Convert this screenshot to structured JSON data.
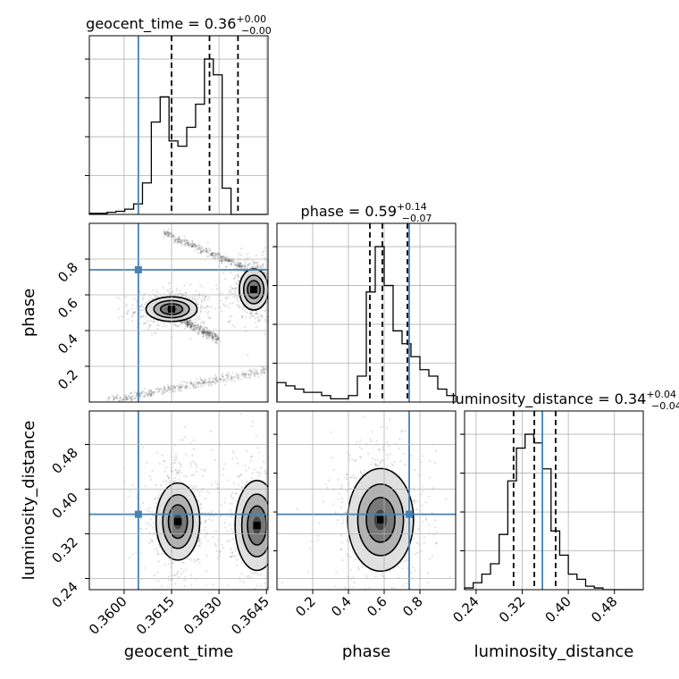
{
  "figure": {
    "colors": {
      "truth": "#4682b4",
      "hist": "#000000",
      "grid": "#b0b0b0",
      "density": [
        "#dcdcdc",
        "#a9a9a9",
        "#6e6e6e",
        "#3c3c3c"
      ]
    }
  },
  "chart_data": [
    {
      "type": "histogram",
      "parameter": "geocent_time",
      "title_name": "geocent_time = 0.36",
      "title_plus": "+0.00",
      "title_minus": "−0.00",
      "xlim": [
        0.3589,
        0.36455
      ],
      "bin_edges": [
        0.3589,
        0.35918,
        0.35946,
        0.35974,
        0.36002,
        0.3603,
        0.36058,
        0.36086,
        0.36114,
        0.36142,
        0.3617,
        0.36198,
        0.36226,
        0.36254,
        0.36282,
        0.3631,
        0.36338,
        0.36366,
        0.36394,
        0.36422,
        0.3645
      ],
      "counts": [
        1,
        1,
        2,
        3,
        5,
        10,
        30,
        88,
        112,
        70,
        65,
        83,
        105,
        148,
        133,
        25,
        0,
        0,
        0,
        0
      ],
      "quantiles": [
        0.3615,
        0.3627,
        0.3636
      ],
      "truth": 0.36045,
      "grid": true
    },
    {
      "type": "histogram",
      "parameter": "phase",
      "title_name": "phase = 0.59",
      "title_plus": "+0.14",
      "title_minus": "−0.07",
      "xlim": [
        0.0,
        1.0
      ],
      "bin_edges": [
        0.0,
        0.05,
        0.1,
        0.15,
        0.2,
        0.25,
        0.3,
        0.35,
        0.4,
        0.45,
        0.5,
        0.55,
        0.6,
        0.65,
        0.7,
        0.75,
        0.8,
        0.85,
        0.9,
        0.95,
        1.0
      ],
      "counts": [
        6,
        5,
        4,
        3,
        3,
        2,
        1,
        1,
        2,
        8,
        34,
        48,
        36,
        22,
        18,
        14,
        10,
        8,
        4,
        2
      ],
      "quantiles": [
        0.52,
        0.59,
        0.73
      ],
      "truth": 0.74,
      "grid": true
    },
    {
      "type": "histogram",
      "parameter": "luminosity_distance",
      "title_name": "luminosity_distance = 0.34",
      "title_plus": "+0.04",
      "title_minus": "−0.04",
      "xlim": [
        0.22,
        0.53
      ],
      "bin_edges": [
        0.22,
        0.235,
        0.25,
        0.265,
        0.28,
        0.295,
        0.31,
        0.325,
        0.34,
        0.355,
        0.37,
        0.385,
        0.4,
        0.415,
        0.43,
        0.445,
        0.46,
        0.475,
        0.49,
        0.505,
        0.52,
        0.535
      ],
      "counts": [
        1,
        4,
        9,
        15,
        32,
        63,
        82,
        90,
        85,
        70,
        34,
        20,
        9,
        6,
        2,
        1,
        0,
        0,
        0,
        0,
        0
      ],
      "quantiles": [
        0.305,
        0.341,
        0.378
      ],
      "truth": 0.355,
      "grid": true
    },
    {
      "type": "scatter",
      "x_param": "geocent_time",
      "y_param": "phase",
      "xlim": [
        0.3589,
        0.36455
      ],
      "ylim": [
        0.0,
        1.0
      ],
      "truth": [
        0.36045,
        0.74
      ],
      "density_peaks": [
        {
          "x": 0.3615,
          "y": 0.52,
          "sx": 0.00035,
          "sy": 0.03
        },
        {
          "x": 0.3641,
          "y": 0.63,
          "sx": 0.0002,
          "sy": 0.05
        }
      ],
      "filaments": [
        {
          "from": [
            0.3612,
            0.95
          ],
          "to": [
            0.3645,
            0.7
          ]
        },
        {
          "from": [
            0.3594,
            0.0
          ],
          "to": [
            0.3645,
            0.18
          ]
        },
        {
          "from": [
            0.3612,
            0.52
          ],
          "to": [
            0.363,
            0.35
          ]
        }
      ]
    },
    {
      "type": "scatter",
      "x_param": "geocent_time",
      "y_param": "luminosity_distance",
      "xlim": [
        0.3589,
        0.36455
      ],
      "ylim": [
        0.22,
        0.54
      ],
      "truth": [
        0.36045,
        0.355
      ],
      "density_peaks": [
        {
          "x": 0.3617,
          "y": 0.342,
          "sx": 0.0003,
          "sy": 0.03
        },
        {
          "x": 0.3642,
          "y": 0.335,
          "sx": 0.0003,
          "sy": 0.035
        }
      ]
    },
    {
      "type": "scatter",
      "x_param": "phase",
      "y_param": "luminosity_distance",
      "xlim": [
        0.0,
        1.0
      ],
      "ylim": [
        0.22,
        0.54
      ],
      "truth": [
        0.74,
        0.355
      ],
      "density_peaks": [
        {
          "x": 0.58,
          "y": 0.345,
          "sx": 0.08,
          "sy": 0.04
        }
      ]
    }
  ],
  "axes": {
    "x_labels": [
      "geocent_time",
      "phase",
      "luminosity_distance"
    ],
    "y_labels": [
      "phase",
      "luminosity_distance"
    ],
    "x_ticks": [
      {
        "values": [
          0.36,
          0.3615,
          0.363,
          0.3645
        ],
        "labels": [
          "0.3600",
          "0.3615",
          "0.3630",
          "0.3645"
        ]
      },
      {
        "values": [
          0.2,
          0.4,
          0.6,
          0.8
        ],
        "labels": [
          "0.2",
          "0.4",
          "0.6",
          "0.8"
        ]
      },
      {
        "values": [
          0.24,
          0.32,
          0.4,
          0.48
        ],
        "labels": [
          "0.24",
          "0.32",
          "0.40",
          "0.48"
        ]
      }
    ],
    "y_ticks": [
      {
        "values": [
          0.2,
          0.4,
          0.6,
          0.8
        ],
        "labels": [
          "0.2",
          "0.4",
          "0.6",
          "0.8"
        ]
      },
      {
        "values": [
          0.24,
          0.32,
          0.4,
          0.48
        ],
        "labels": [
          "0.24",
          "0.32",
          "0.40",
          "0.48"
        ]
      }
    ]
  }
}
